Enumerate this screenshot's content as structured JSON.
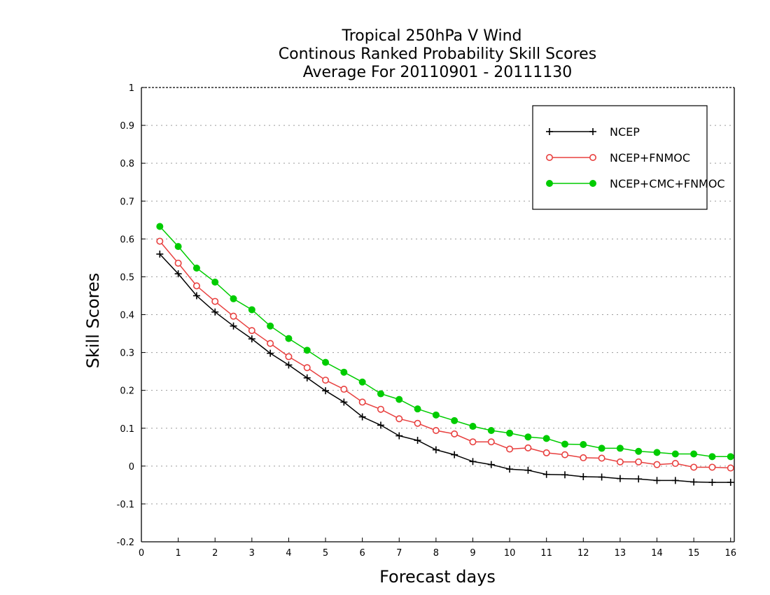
{
  "chart_data": {
    "type": "line",
    "title_lines": [
      "Tropical 250hPa V Wind",
      "Continous Ranked Probability Skill Scores",
      "Average For 20110901 - 20111130"
    ],
    "xlabel": "Forecast days",
    "ylabel": "Skill Scores",
    "xlim": [
      0,
      16.1
    ],
    "ylim": [
      -0.2,
      1
    ],
    "x_ticks": [
      0,
      1,
      2,
      3,
      4,
      5,
      6,
      7,
      8,
      9,
      10,
      11,
      12,
      13,
      14,
      15,
      16
    ],
    "x_tick_labels": [
      "0",
      "1",
      "2",
      "3",
      "4",
      "5",
      "6",
      "7",
      "8",
      "9",
      "10",
      "11",
      "12",
      "13",
      "14",
      "15",
      "16"
    ],
    "y_ticks": [
      -0.2,
      -0.1,
      0,
      0.1,
      0.2,
      0.3,
      0.4,
      0.5,
      0.6,
      0.7,
      0.8,
      0.9,
      1
    ],
    "y_tick_labels": [
      "-0.2",
      "-0.1",
      "0",
      "0.1",
      "0.2",
      "0.3",
      "0.4",
      "0.5",
      "0.6",
      "0.7",
      "0.8",
      "0.9",
      "1"
    ],
    "grid": true,
    "legend_position": "top-right",
    "x": [
      0.5,
      1,
      1.5,
      2,
      2.5,
      3,
      3.5,
      4,
      4.5,
      5,
      5.5,
      6,
      6.5,
      7,
      7.5,
      8,
      8.5,
      9,
      9.5,
      10,
      10.5,
      11,
      11.5,
      12,
      12.5,
      13,
      13.5,
      14,
      14.5,
      15,
      15.5,
      16
    ],
    "series": [
      {
        "name": "NCEP",
        "color": "#000000",
        "marker": "plus",
        "values": [
          0.56,
          0.508,
          0.45,
          0.407,
          0.37,
          0.336,
          0.298,
          0.267,
          0.233,
          0.199,
          0.169,
          0.13,
          0.108,
          0.08,
          0.068,
          0.043,
          0.03,
          0.012,
          0.004,
          -0.008,
          -0.011,
          -0.022,
          -0.023,
          -0.028,
          -0.029,
          -0.033,
          -0.034,
          -0.038,
          -0.038,
          -0.042,
          -0.043,
          -0.043
        ]
      },
      {
        "name": "NCEP+FNMOC",
        "color": "#e8403f",
        "marker": "open-circle",
        "values": [
          0.594,
          0.536,
          0.476,
          0.435,
          0.396,
          0.358,
          0.324,
          0.289,
          0.26,
          0.227,
          0.203,
          0.169,
          0.15,
          0.125,
          0.113,
          0.094,
          0.085,
          0.064,
          0.064,
          0.045,
          0.048,
          0.035,
          0.03,
          0.022,
          0.021,
          0.011,
          0.011,
          0.004,
          0.007,
          -0.003,
          -0.003,
          -0.005
        ]
      },
      {
        "name": "NCEP+CMC+FNMOC",
        "color": "#00cc00",
        "marker": "filled-circle",
        "values": [
          0.633,
          0.58,
          0.523,
          0.486,
          0.442,
          0.413,
          0.37,
          0.337,
          0.306,
          0.274,
          0.248,
          0.222,
          0.191,
          0.176,
          0.151,
          0.135,
          0.12,
          0.105,
          0.094,
          0.087,
          0.077,
          0.073,
          0.058,
          0.057,
          0.047,
          0.047,
          0.039,
          0.036,
          0.032,
          0.032,
          0.025,
          0.025
        ]
      }
    ]
  }
}
